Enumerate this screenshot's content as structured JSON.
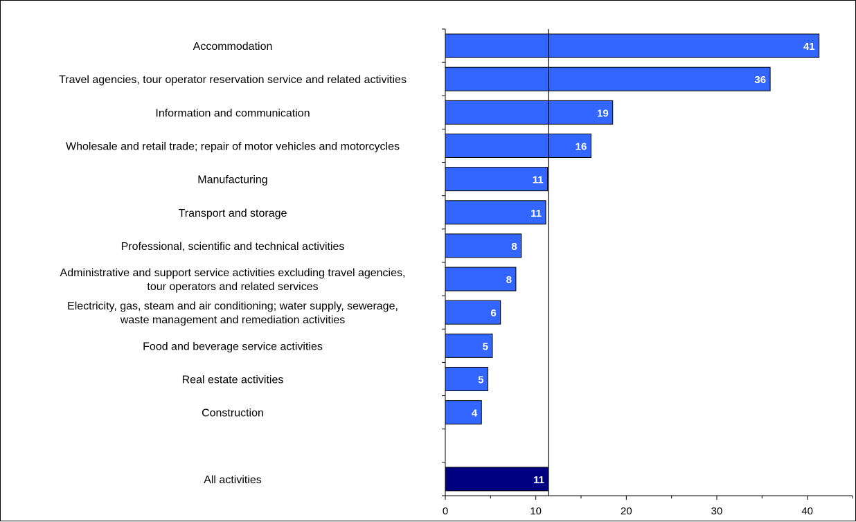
{
  "chart_data": {
    "type": "bar",
    "orientation": "horizontal",
    "categories": [
      [
        "Accommodation"
      ],
      [
        "Travel agencies, tour operator reservation service and related activities"
      ],
      [
        "Information and communication"
      ],
      [
        "Wholesale and retail trade; repair of motor vehicles and motorcycles"
      ],
      [
        "Manufacturing"
      ],
      [
        "Transport and storage"
      ],
      [
        "Professional, scientific and technical activities"
      ],
      [
        "Administrative and support service activities excluding travel agencies,",
        "tour operators and related services"
      ],
      [
        "Electricity, gas, steam and air conditioning; water supply, sewerage,",
        "waste management and remediation activities"
      ],
      [
        "Food and beverage service activities"
      ],
      [
        "Real estate activities"
      ],
      [
        "Construction"
      ],
      [
        ""
      ],
      [
        "All activities"
      ]
    ],
    "values": [
      41.3,
      35.9,
      18.5,
      16.1,
      11.3,
      11.1,
      8.4,
      7.8,
      6.1,
      5.2,
      4.7,
      4.0,
      null,
      11.4
    ],
    "data_labels": [
      "41",
      "36",
      "19",
      "16",
      "11",
      "11",
      "8",
      "8",
      "6",
      "5",
      "5",
      "4",
      "",
      "11"
    ],
    "highlight": [
      false,
      false,
      false,
      false,
      false,
      false,
      false,
      false,
      false,
      false,
      false,
      false,
      false,
      true
    ],
    "reference_line": 11.4,
    "xlim": [
      0,
      45
    ],
    "xticks": [
      0,
      10,
      20,
      30,
      40
    ],
    "title": "",
    "xlabel": "",
    "ylabel": "",
    "grid": false,
    "legend": "none",
    "colors": {
      "bar": "#3366FF",
      "highlight": "#000080",
      "edge": "#000000",
      "label": "#ffffff"
    }
  }
}
